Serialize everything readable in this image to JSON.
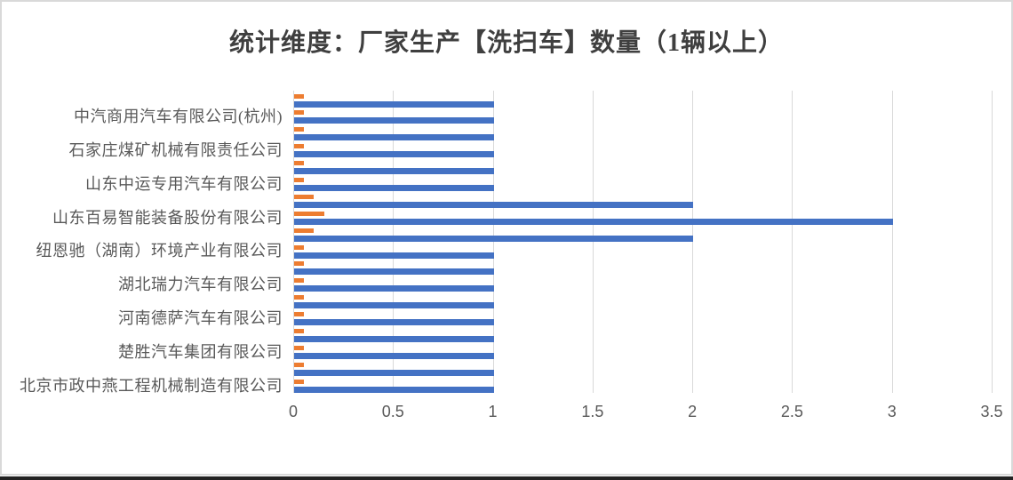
{
  "window": {
    "background": "#ffffff",
    "border_color": "#d9d9d9",
    "bottom_edge_color": "#222222"
  },
  "title": {
    "text": "统计维度：厂家生产【洗扫车】数量（1辆以上）",
    "color": "#3f3f3f"
  },
  "axis": {
    "tick_labels": [
      "0",
      "0.5",
      "1",
      "1.5",
      "2",
      "2.5",
      "3",
      "3.5"
    ],
    "text_color": "#595959",
    "gridline_color": "#d9d9d9"
  },
  "chart_data": {
    "type": "bar",
    "orientation": "horizontal",
    "title": "统计维度：厂家生产【洗扫车】数量（1辆以上）",
    "xlabel": "",
    "ylabel": "",
    "xlim": [
      0,
      3.5
    ],
    "xticks": [
      0,
      0.5,
      1,
      1.5,
      2,
      2.5,
      3,
      3.5
    ],
    "grid": true,
    "legend": false,
    "row_order": "top-to-bottom",
    "axis_label_interval": "every other category row is labeled",
    "categories": [
      "",
      "中汽商用汽车有限公司(杭州)",
      "",
      "石家庄煤矿机械有限责任公司",
      "",
      "山东中运专用汽车有限公司",
      "",
      "山东百易智能装备股份有限公司",
      "",
      "纽恩驰（湖南）环境产业有限公司",
      "",
      "湖北瑞力汽车有限公司",
      "",
      "河南德萨汽车有限公司",
      "",
      "楚胜汽车集团有限公司",
      "",
      "北京市政中燕工程机械制造有限公司"
    ],
    "series": [
      {
        "name": "blue",
        "color": "#4472C4",
        "values": [
          1,
          1,
          1,
          1,
          1,
          1,
          2,
          3,
          2,
          1,
          1,
          1,
          1,
          1,
          1,
          1,
          1,
          1
        ]
      },
      {
        "name": "orange",
        "color": "#ED7D31",
        "values": [
          0.05,
          0.05,
          0.05,
          0.05,
          0.05,
          0.05,
          0.1,
          0.15,
          0.1,
          0.05,
          0.05,
          0.05,
          0.05,
          0.05,
          0.05,
          0.05,
          0.05,
          0.05
        ]
      }
    ]
  }
}
